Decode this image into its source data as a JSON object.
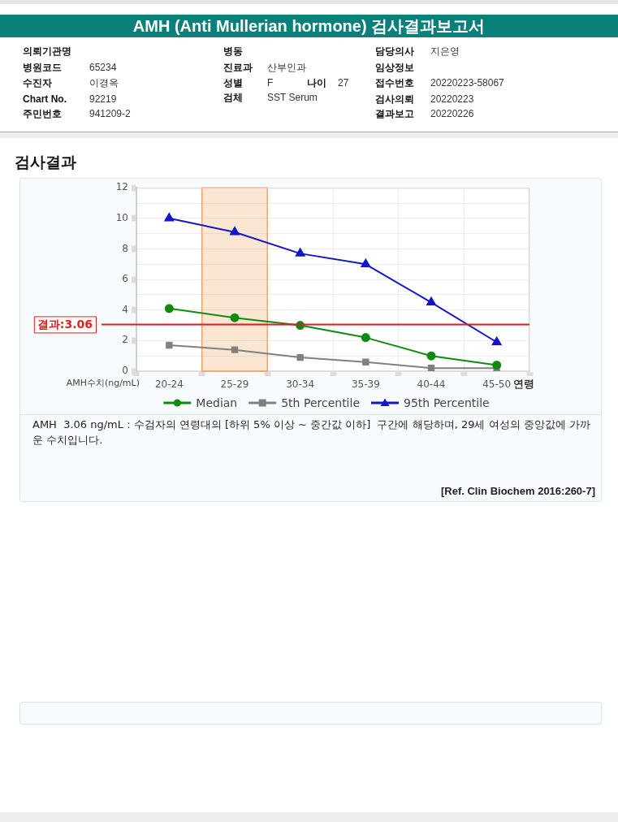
{
  "chart_data": {
    "type": "line",
    "title": "AMH (Anti Mullerian hormone) 검사결과보고서",
    "subtitle": "검사결과",
    "xlabel": "연령",
    "ylabel": "AMH수치(ng/mL)",
    "categories": [
      "20-24",
      "25-29",
      "30-34",
      "35-39",
      "40-44",
      "45-50"
    ],
    "series": [
      {
        "name": "Median",
        "color": "#108a10",
        "marker": "circle",
        "values": [
          4.1,
          3.5,
          3.0,
          2.2,
          1.0,
          0.4
        ]
      },
      {
        "name": "5th Percentile",
        "color": "#808080",
        "marker": "square",
        "values": [
          1.7,
          1.4,
          0.9,
          0.6,
          0.2,
          0.2
        ]
      },
      {
        "name": "95th Percentile",
        "color": "#1414c8",
        "marker": "triangle",
        "values": [
          10.0,
          9.1,
          7.7,
          7.0,
          4.5,
          1.9
        ]
      }
    ],
    "ylim": [
      0,
      12
    ],
    "yticks": [
      0,
      {
        "value": 1,
        "label": null
      },
      2,
      {
        "value": 3,
        "label": null
      },
      4,
      {
        "value": 5,
        "label": null
      },
      6,
      {
        "value": 7,
        "label": null
      },
      8,
      {
        "value": 9,
        "label": null
      },
      10,
      {
        "value": 11,
        "label": null
      },
      12
    ],
    "grid": true,
    "legend": "bottom",
    "line_style": "solid",
    "ref_lines": [
      {
        "axis": "y",
        "value": 3.06,
        "label": "결과:3.06",
        "color": "#e01e1e"
      }
    ],
    "bands": [
      {
        "axis": "x",
        "from": "25-29",
        "to": "25-29",
        "color": "#f0a060"
      }
    ],
    "annotations": [
      "의뢰기관명",
      "병동",
      "담당의사",
      "지은영",
      "병원코드",
      "65234",
      "진료과",
      "산부인과",
      "임상정보",
      "수진자",
      "이경옥",
      "성별",
      "F",
      "나이",
      "27",
      "접수번호",
      "20220223-58067",
      "Chart No.",
      "92219",
      "검체",
      "SST Serum",
      "검사의뢰",
      "20220223",
      "주민번호",
      "941209-2",
      "결과보고",
      "20220226",
      "AMH  3.06 ng/mL : 수검자의 연령대의 [하위 5% 이상 ~ 중간값 이하]  구간에 해당하며, 29세 여성의 중앙값에 가까운 수치입니다.",
      "[Ref. Clin Biochem 2016:260-7]"
    ]
  }
}
